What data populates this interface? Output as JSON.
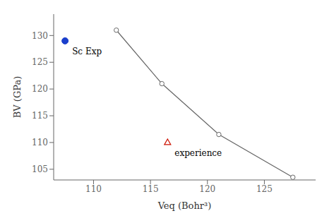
{
  "chart_data": {
    "type": "line",
    "xlabel": "Veq (Bohr³)",
    "ylabel": "BV (GPa)",
    "xlim": [
      106.5,
      129.5
    ],
    "ylim": [
      103,
      134
    ],
    "xticks": [
      110,
      115,
      120,
      125
    ],
    "yticks": [
      105,
      110,
      115,
      120,
      125,
      130
    ],
    "series": [
      {
        "type": "line",
        "color": "#666666",
        "marker": "open_circle",
        "x": [
          112.0,
          116.0,
          121.0,
          127.5
        ],
        "values": [
          131.0,
          121.0,
          111.5,
          103.5
        ]
      },
      {
        "type": "scatter",
        "name": "Sc Exp",
        "color": "#1a3fcc",
        "marker": "circle",
        "x": [
          107.5
        ],
        "values": [
          129.0
        ]
      },
      {
        "type": "scatter",
        "name": "experience",
        "color": "#cc1100",
        "marker": "open_triangle",
        "x": [
          116.5
        ],
        "values": [
          110.0
        ]
      }
    ]
  }
}
